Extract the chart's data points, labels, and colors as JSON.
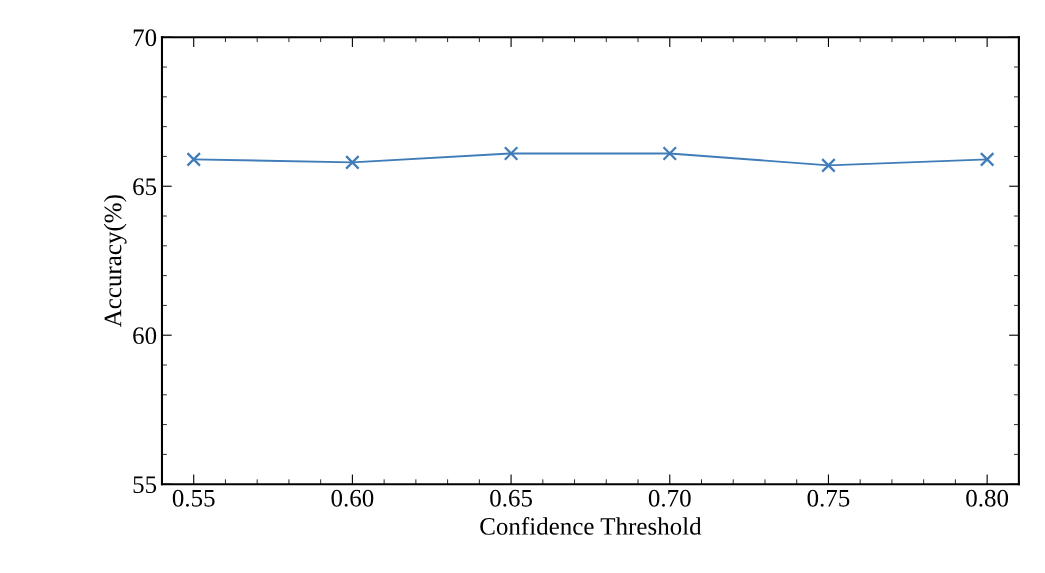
{
  "chart_data": {
    "type": "line",
    "xlabel": "Confidence Threshold",
    "ylabel": "Accuracy(%)",
    "x": [
      0.55,
      0.6,
      0.65,
      0.7,
      0.75,
      0.8
    ],
    "series": [
      {
        "color": "#3f7cb8",
        "values": [
          65.9,
          65.8,
          66.1,
          66.1,
          65.7,
          65.9
        ]
      }
    ],
    "xlim": [
      0.54,
      0.81
    ],
    "xticks": [
      {
        "value": 0.55,
        "label": "0.55"
      },
      {
        "value": 0.6,
        "label": "0.60"
      },
      {
        "value": 0.65,
        "label": "0.65"
      },
      {
        "value": 0.7,
        "label": "0.70"
      },
      {
        "value": 0.75,
        "label": "0.75"
      },
      {
        "value": 0.8,
        "label": "0.80"
      }
    ],
    "ylim": [
      55,
      70
    ],
    "yticks": [
      55,
      60,
      65,
      70
    ],
    "marker": "cross",
    "line_style": "solid",
    "grid": false
  }
}
